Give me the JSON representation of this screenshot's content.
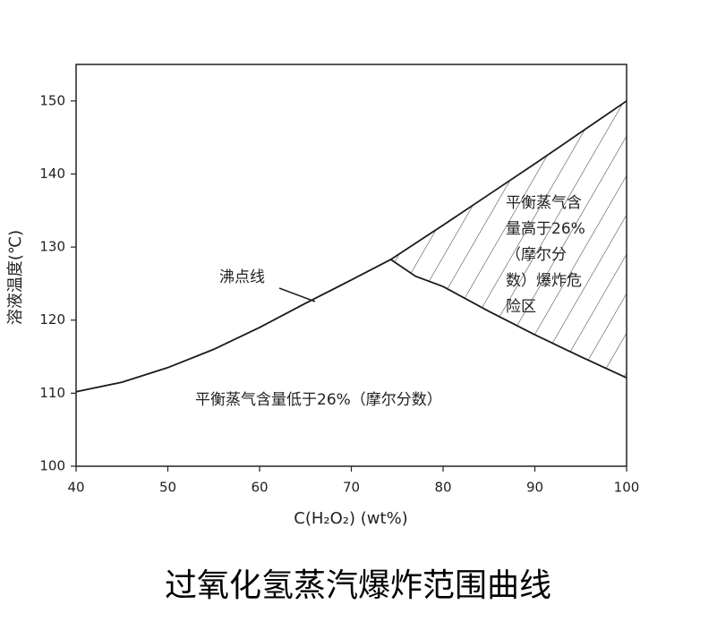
{
  "chart_data": {
    "type": "line",
    "title": "过氧化氢蒸汽爆炸范围曲线",
    "xlabel": "C(H₂O₂) (wt%)",
    "ylabel": "溶液温度(℃)",
    "xlim": [
      40,
      100
    ],
    "ylim": [
      100,
      155
    ],
    "xticks": [
      40,
      50,
      60,
      70,
      80,
      90,
      100
    ],
    "yticks": [
      100,
      110,
      120,
      130,
      140,
      150
    ],
    "series": [
      {
        "color": "#1a1a1a",
        "x": [
          40,
          45,
          50,
          55,
          60,
          65,
          70,
          74.3,
          80,
          85,
          90,
          95,
          100
        ],
        "values": [
          110.2,
          111.5,
          113.5,
          116,
          119,
          122.3,
          125.5,
          128.3,
          133,
          137.2,
          141.4,
          145.7,
          150
        ]
      },
      {
        "color": "#1a1a1a",
        "x": [
          74.3,
          77,
          80,
          85,
          90,
          95,
          100
        ],
        "values": [
          128.3,
          126,
          124.6,
          121.2,
          118,
          115,
          112.1
        ]
      }
    ],
    "annotations": {
      "boiling_line": "沸点线",
      "danger_zone": [
        "平衡蒸气含",
        "量高于26%",
        "（摩尔分",
        "数）爆炸危",
        "险区"
      ],
      "safe_zone": "平衡蒸气含量低于26%（摩尔分数）"
    }
  }
}
